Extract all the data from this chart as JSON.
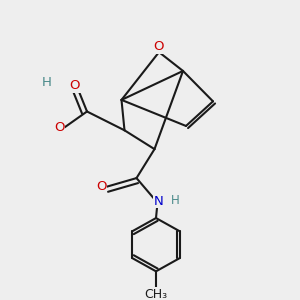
{
  "background_color": "#eeeeee",
  "bond_color": "#1a1a1a",
  "bond_lw": 1.5,
  "atom_colors": {
    "O": "#cc0000",
    "N": "#0000cc",
    "H": "#4a8a8a",
    "C": "#1a1a1a"
  },
  "xlim": [
    0,
    10
  ],
  "ylim": [
    0,
    10
  ],
  "figsize": [
    3.0,
    3.0
  ],
  "dpi": 100
}
